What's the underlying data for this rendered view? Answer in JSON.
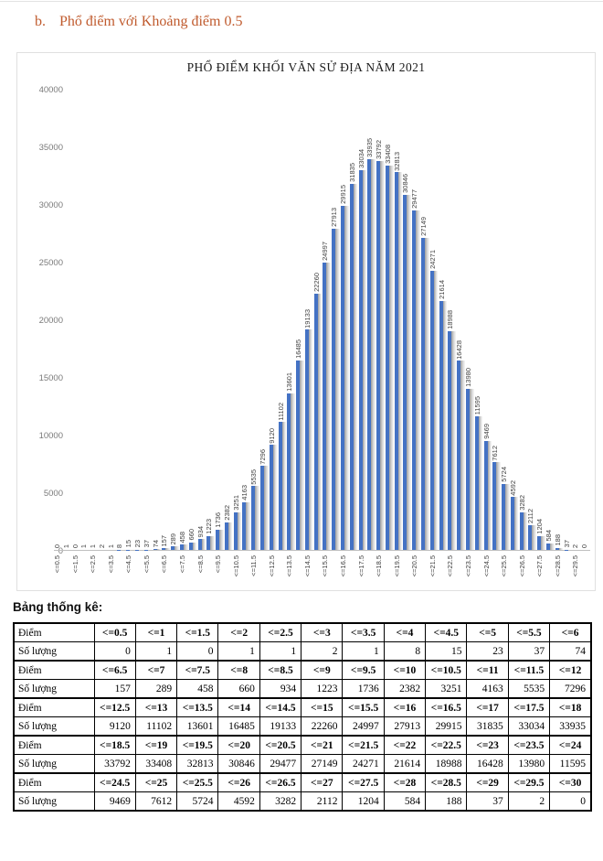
{
  "page": {
    "heading_marker": "b.",
    "heading_text": "Phổ điểm với Khoảng điểm 0.5",
    "heading_color": "#c05b2e"
  },
  "chart_data": {
    "type": "bar",
    "title": "PHỔ ĐIỂM KHỐI VĂN SỬ ĐỊA NĂM 2021",
    "categories": [
      "<=0.5",
      "<=1",
      "<=1.5",
      "<=2",
      "<=2.5",
      "<=3",
      "<=3.5",
      "<=4",
      "<=4.5",
      "<=5",
      "<=5.5",
      "<=6",
      "<=6.5",
      "<=7",
      "<=7.5",
      "<=8",
      "<=8.5",
      "<=9",
      "<=9.5",
      "<=10",
      "<=10.5",
      "<=11",
      "<=11.5",
      "<=12",
      "<=12.5",
      "<=13",
      "<=13.5",
      "<=14",
      "<=14.5",
      "<=15",
      "<=15.5",
      "<=16",
      "<=16.5",
      "<=17",
      "<=17.5",
      "<=18",
      "<=18.5",
      "<=19",
      "<=19.5",
      "<=20",
      "<=20.5",
      "<=21",
      "<=21.5",
      "<=22",
      "<=22.5",
      "<=23",
      "<=23.5",
      "<=24",
      "<=24.5",
      "<=25",
      "<=25.5",
      "<=26",
      "<=26.5",
      "<=27",
      "<=27.5",
      "<=28",
      "<=28.5",
      "<=29",
      "<=29.5",
      "<=30"
    ],
    "values": [
      0,
      1,
      0,
      1,
      1,
      2,
      1,
      8,
      15,
      23,
      37,
      74,
      157,
      289,
      458,
      660,
      934,
      1223,
      1736,
      2382,
      3251,
      4163,
      5535,
      7296,
      9120,
      11102,
      13601,
      16485,
      19133,
      22260,
      24997,
      27913,
      29915,
      31835,
      33034,
      33935,
      33792,
      33408,
      32813,
      30846,
      29477,
      27149,
      24271,
      21614,
      18988,
      16428,
      13980,
      11595,
      9469,
      7612,
      5724,
      4592,
      3282,
      2112,
      1204,
      584,
      188,
      37,
      2,
      0
    ],
    "y_ticks": [
      0,
      5000,
      10000,
      15000,
      20000,
      25000,
      30000,
      35000,
      40000
    ],
    "ylim": [
      0,
      40000
    ],
    "xlabel": "",
    "ylabel": "",
    "x_tick_shown_every": 2,
    "data_labels": true,
    "data_label_rotation": 90,
    "grid": false,
    "legend": "none",
    "bar_color": "#4472c4",
    "shadow_color": "#9d9d9d",
    "axis_line_color": "#bfbfbf"
  },
  "table": {
    "caption": "Bảng thống kê:",
    "score_row_label": "Điểm",
    "count_row_label": "Số lượng",
    "columns_per_row": 12
  }
}
